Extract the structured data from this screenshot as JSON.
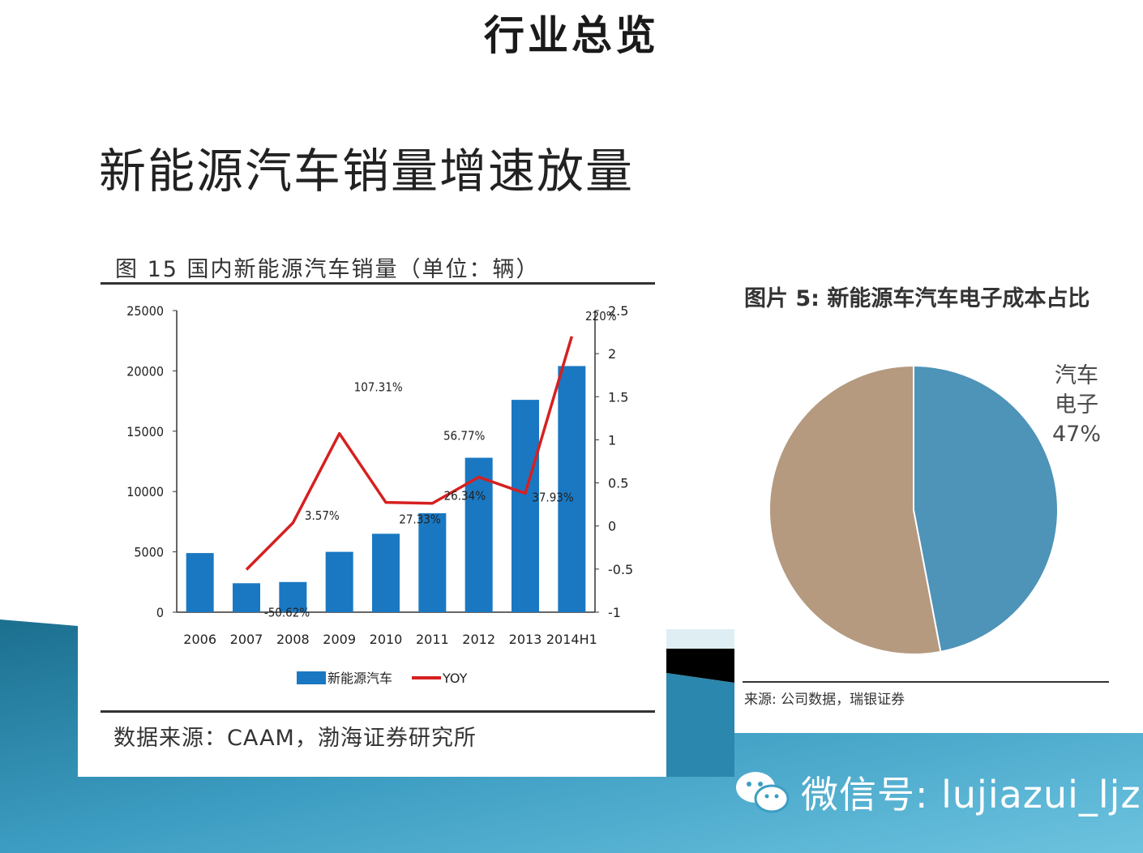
{
  "slide": {
    "title": "行业总览",
    "heading": "新能源汽车销量增速放量"
  },
  "left_figure": {
    "caption": "图 15   国内新能源汽车销量（单位：辆）",
    "source": "数据来源：CAAM，渤海证券研究所"
  },
  "right_figure": {
    "caption": "图片 5: 新能源车汽车电子成本占比",
    "source": "来源: 公司数据，瑞银证券"
  },
  "watermark": {
    "text": "微信号: lujiazui_ljz"
  },
  "colors": {
    "bar": "#1a78c2",
    "line": "#d62020",
    "pie_electronics": "#4e93b8",
    "pie_other": "#b59a80",
    "band_dark": "#1b6f8f",
    "band_light": "#5fb8d8"
  },
  "chart_data": [
    {
      "type": "bar",
      "categories": [
        "2006",
        "2007",
        "2008",
        "2009",
        "2010",
        "2011",
        "2012",
        "2013",
        "2014H1"
      ],
      "series": [
        {
          "name": "新能源汽车",
          "type": "bar",
          "axis": "left",
          "values": [
            4900,
            2400,
            2500,
            5000,
            6500,
            8200,
            12800,
            17600,
            20400
          ]
        },
        {
          "name": "YOY",
          "type": "line",
          "axis": "right",
          "values": [
            null,
            -0.5062,
            0.0357,
            1.0731,
            0.2733,
            0.2634,
            0.5677,
            0.3793,
            2.2
          ],
          "labels": [
            "",
            "-50.62%",
            "3.57%",
            "107.31%",
            "27.33%",
            "26.34%",
            "56.77%",
            "37.93%",
            "220%"
          ]
        }
      ],
      "y_left": {
        "ylim": [
          0,
          25000
        ],
        "ticks": [
          "0",
          "5000",
          "10000",
          "15000",
          "20000",
          "25000"
        ]
      },
      "y_right": {
        "ylim": [
          -1,
          2.5
        ],
        "ticks": [
          "-1",
          "-0.5",
          "0",
          "0.5",
          "1",
          "1.5",
          "2",
          "2.5"
        ]
      },
      "legend": [
        "新能源汽车",
        "YOY"
      ],
      "legend_position": "bottom"
    },
    {
      "type": "pie",
      "slices": [
        {
          "label": "汽车\n电子\n47%",
          "label_lines": [
            "汽车",
            "电子",
            "47%"
          ],
          "value": 47
        },
        {
          "label": "",
          "value": 53
        }
      ]
    }
  ]
}
